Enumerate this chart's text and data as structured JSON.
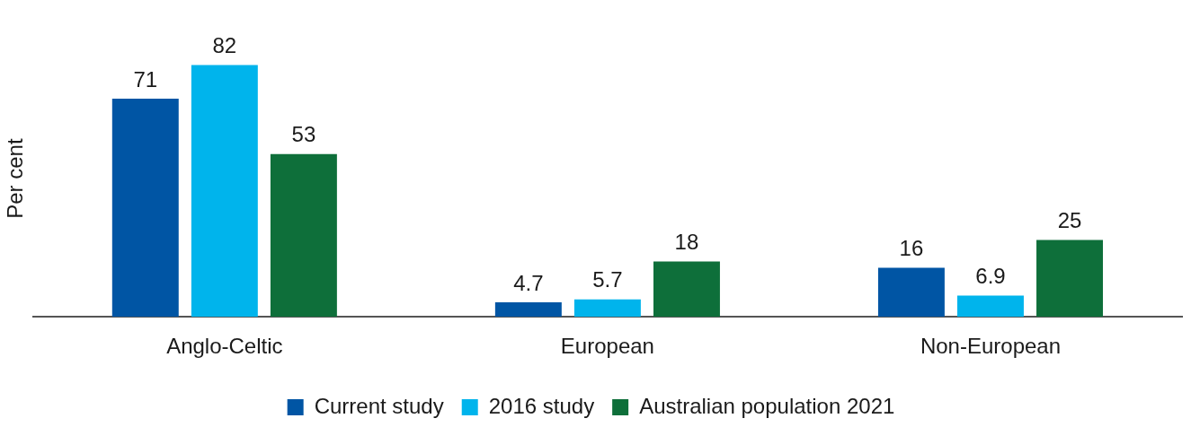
{
  "chart_data": {
    "type": "bar",
    "ylabel": "Per cent",
    "categories": [
      "Anglo-Celtic",
      "European",
      "Non-European"
    ],
    "series": [
      {
        "name": "Current study",
        "color": "#0055a4",
        "values": [
          71,
          4.7,
          16
        ]
      },
      {
        "name": "2016 study",
        "color": "#00b4ec",
        "values": [
          82,
          5.7,
          6.9
        ]
      },
      {
        "name": "Australian population 2021",
        "color": "#0e6f3a",
        "values": [
          53,
          18,
          25
        ]
      }
    ],
    "data_labels": true,
    "grid": false,
    "legend": "bottom",
    "tick_labels": "x"
  }
}
